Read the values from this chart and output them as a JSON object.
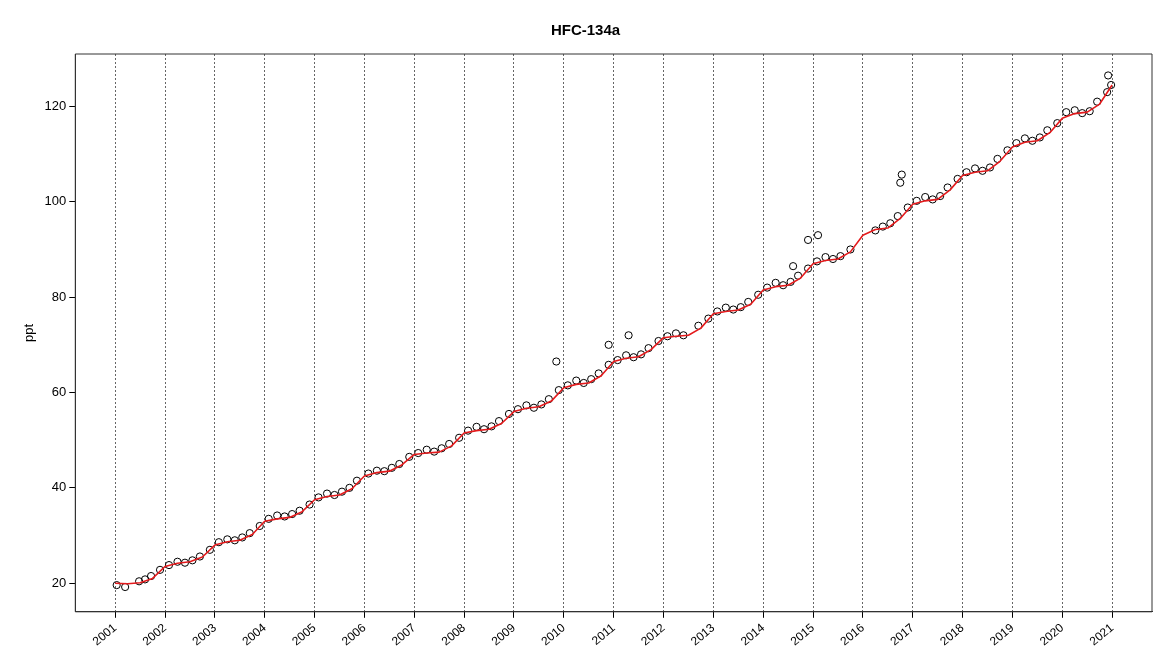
{
  "chart_data": {
    "type": "scatter",
    "title": "HFC-134a",
    "ylabel": "ppt",
    "xlim": [
      2000.2,
      2021.8
    ],
    "ylim": [
      14,
      131
    ],
    "xticks": [
      2001,
      2002,
      2003,
      2004,
      2005,
      2006,
      2007,
      2008,
      2009,
      2010,
      2011,
      2012,
      2013,
      2014,
      2015,
      2016,
      2017,
      2018,
      2019,
      2020,
      2021
    ],
    "yticks": [
      20,
      40,
      60,
      80,
      100,
      120
    ],
    "grid": "x",
    "legend": false,
    "series": [
      {
        "type": "scatter",
        "color": "#000000",
        "marker": "circle",
        "x": [
          2001.03,
          2001.2,
          2001.48,
          2001.6,
          2001.72,
          2001.9,
          2002.08,
          2002.25,
          2002.4,
          2002.55,
          2002.7,
          2002.9,
          2003.08,
          2003.25,
          2003.4,
          2003.55,
          2003.7,
          2003.9,
          2004.08,
          2004.25,
          2004.4,
          2004.55,
          2004.7,
          2004.9,
          2005.08,
          2005.25,
          2005.4,
          2005.55,
          2005.7,
          2005.85,
          2006.08,
          2006.25,
          2006.4,
          2006.55,
          2006.7,
          2006.9,
          2007.08,
          2007.25,
          2007.4,
          2007.55,
          2007.7,
          2007.9,
          2008.08,
          2008.25,
          2008.4,
          2008.55,
          2008.7,
          2008.9,
          2009.08,
          2009.25,
          2009.4,
          2009.55,
          2009.7,
          2009.9,
          2010.08,
          2010.25,
          2010.4,
          2010.55,
          2010.7,
          2010.9,
          2011.08,
          2011.25,
          2011.4,
          2011.55,
          2011.7,
          2011.9,
          2012.08,
          2012.25,
          2012.4,
          2012.7,
          2012.9,
          2013.08,
          2013.25,
          2013.4,
          2013.55,
          2013.7,
          2013.9,
          2014.08,
          2014.25,
          2014.4,
          2014.55,
          2014.7,
          2014.9,
          2015.08,
          2015.25,
          2015.4,
          2015.55,
          2015.75,
          2016.25,
          2016.4,
          2016.55,
          2016.7,
          2016.9,
          2017.08,
          2017.25,
          2017.4,
          2017.55,
          2017.7,
          2017.9,
          2018.08,
          2018.25,
          2018.4,
          2018.55,
          2018.7,
          2018.9,
          2019.08,
          2019.25,
          2019.4,
          2019.55,
          2019.7,
          2019.9,
          2020.08,
          2020.25,
          2020.4,
          2020.55,
          2020.7,
          2020.9,
          2020.98,
          2009.85,
          2010.9,
          2011.3,
          2014.6,
          2014.9,
          2015.1,
          2016.75,
          2016.78,
          2020.92
        ],
        "values": [
          19.6,
          19.2,
          20.4,
          20.8,
          21.5,
          22.8,
          23.8,
          24.5,
          24.3,
          24.8,
          25.6,
          27.0,
          28.6,
          29.2,
          29.0,
          29.6,
          30.5,
          32.0,
          33.5,
          34.2,
          34.0,
          34.5,
          35.2,
          36.5,
          38.0,
          38.8,
          38.5,
          39.2,
          40.0,
          41.5,
          43.0,
          43.6,
          43.5,
          44.2,
          45.0,
          46.5,
          47.3,
          48.0,
          47.6,
          48.3,
          49.2,
          50.5,
          52.0,
          52.8,
          52.3,
          52.9,
          54.0,
          55.5,
          56.5,
          57.3,
          56.8,
          57.5,
          58.6,
          60.5,
          61.5,
          62.5,
          62.0,
          62.8,
          64.0,
          65.8,
          66.8,
          67.8,
          67.4,
          68.0,
          69.3,
          70.8,
          71.8,
          72.4,
          72.0,
          74.0,
          75.5,
          77.0,
          77.8,
          77.4,
          77.9,
          79.0,
          80.5,
          82.0,
          83.0,
          82.5,
          83.2,
          84.5,
          86.0,
          87.5,
          88.4,
          88.0,
          88.6,
          90.0,
          94.0,
          94.8,
          95.5,
          97.0,
          98.8,
          100.2,
          101.0,
          100.5,
          101.2,
          103.0,
          104.8,
          106.2,
          107.0,
          106.5,
          107.2,
          109.0,
          110.8,
          112.3,
          113.3,
          112.8,
          113.5,
          115.0,
          116.5,
          118.8,
          119.2,
          118.6,
          119.0,
          121.0,
          123.0,
          124.5,
          66.5,
          70.0,
          72.0,
          86.5,
          92.0,
          93.0,
          104.0,
          105.7,
          126.5
        ]
      },
      {
        "type": "line",
        "color": "#e41a1c",
        "marker": "none",
        "line_style": "solid",
        "x": [
          2001,
          2001.25,
          2001.5,
          2001.75,
          2002,
          2002.25,
          2002.5,
          2002.75,
          2003,
          2003.25,
          2003.5,
          2003.75,
          2004,
          2004.25,
          2004.5,
          2004.75,
          2005,
          2005.25,
          2005.5,
          2005.75,
          2006,
          2006.25,
          2006.5,
          2006.75,
          2007,
          2007.25,
          2007.5,
          2007.75,
          2008,
          2008.25,
          2008.5,
          2008.75,
          2009,
          2009.25,
          2009.5,
          2009.75,
          2010,
          2010.25,
          2010.5,
          2010.75,
          2011,
          2011.25,
          2011.5,
          2011.75,
          2012,
          2012.25,
          2012.5,
          2012.75,
          2013,
          2013.25,
          2013.5,
          2013.75,
          2014,
          2014.25,
          2014.5,
          2014.75,
          2015,
          2015.25,
          2015.5,
          2015.75,
          2016,
          2016.25,
          2016.5,
          2016.75,
          2017,
          2017.25,
          2017.5,
          2017.75,
          2018,
          2018.25,
          2018.5,
          2018.75,
          2019,
          2019.25,
          2019.5,
          2019.75,
          2020,
          2020.25,
          2020.5,
          2020.75,
          2021
        ],
        "values": [
          20.0,
          19.9,
          20.1,
          21.0,
          23.5,
          24.2,
          24.5,
          25.5,
          28.0,
          28.7,
          29.0,
          30.2,
          33.0,
          33.5,
          33.8,
          35.0,
          37.5,
          38.2,
          38.5,
          39.8,
          42.5,
          43.2,
          43.5,
          44.8,
          47.0,
          47.3,
          47.5,
          48.8,
          51.5,
          52.0,
          52.3,
          53.5,
          56.0,
          56.7,
          57.0,
          58.2,
          61.0,
          61.7,
          62.0,
          63.5,
          66.5,
          67.2,
          67.5,
          69.0,
          71.5,
          71.8,
          72.0,
          73.5,
          76.5,
          77.0,
          77.3,
          78.5,
          81.5,
          82.2,
          82.5,
          84.0,
          87.0,
          87.7,
          88.0,
          89.5,
          93.0,
          94.2,
          94.5,
          96.5,
          99.5,
          100.2,
          100.5,
          102.5,
          105.5,
          106.2,
          106.5,
          108.5,
          111.5,
          112.5,
          112.8,
          114.5,
          117.5,
          118.5,
          118.8,
          120.5,
          124.5
        ]
      }
    ]
  }
}
